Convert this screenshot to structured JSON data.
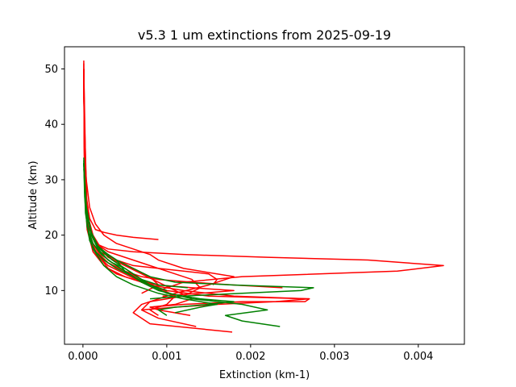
{
  "chart_data": {
    "type": "line",
    "title": "v5.3 1 um extinctions from 2025-09-19",
    "xlabel": "Extinction (km-1)",
    "ylabel": "Altitude (km)",
    "xlim": [
      -0.00022,
      0.00455
    ],
    "ylim": [
      0.3,
      54
    ],
    "xticks": [
      0.0,
      0.001,
      0.002,
      0.003,
      0.004
    ],
    "xtick_labels": [
      "0.000",
      "0.001",
      "0.002",
      "0.003",
      "0.004"
    ],
    "yticks": [
      10,
      20,
      30,
      40,
      50
    ],
    "ytick_labels": [
      "10",
      "20",
      "30",
      "40",
      "50"
    ],
    "grid": false,
    "legend": false,
    "colors": {
      "red": "#ff0000",
      "green": "#008000"
    },
    "series": [
      {
        "color": "red",
        "x": [
          0.00178,
          0.0008,
          0.0006,
          0.0007,
          0.0011,
          0.0015,
          0.0018,
          0.0012,
          0.0009,
          0.0008,
          0.0006,
          0.0004,
          0.00025,
          0.00015,
          8e-05,
          4e-05,
          2e-05,
          1e-05,
          1e-05
        ],
        "y": [
          2.5,
          4.0,
          6.0,
          7.5,
          9.5,
          11.0,
          12.5,
          14.0,
          15.5,
          16.5,
          17.5,
          18.5,
          20.0,
          22.0,
          25.0,
          30.0,
          35.0,
          45.0,
          51.5
        ]
      },
      {
        "color": "red",
        "x": [
          0.00135,
          0.0009,
          0.0007,
          0.0008,
          0.0012,
          0.0014,
          0.0013,
          0.001,
          0.0007,
          0.0005,
          0.0003,
          0.0002,
          0.00012,
          5e-05,
          2e-05,
          1e-05
        ],
        "y": [
          3.5,
          5.0,
          6.5,
          8.0,
          9.0,
          10.5,
          12.0,
          13.5,
          15.0,
          16.0,
          17.0,
          18.0,
          20.0,
          24.0,
          32.0,
          51.0
        ]
      },
      {
        "color": "red",
        "x": [
          0.0009,
          0.0008,
          0.001,
          0.0011,
          0.0009,
          0.0007,
          0.0005,
          0.0003,
          0.0002,
          0.00012,
          6e-05,
          2e-05,
          1e-05
        ],
        "y": [
          5.5,
          6.5,
          7.5,
          9.0,
          10.5,
          12.0,
          13.5,
          15.0,
          16.5,
          18.5,
          21.0,
          28.0,
          50.0
        ]
      },
      {
        "color": "red",
        "x": [
          0.00128,
          0.0009,
          0.0008,
          0.0012,
          0.0019,
          0.00265,
          0.0027,
          0.0015,
          0.001,
          0.0007,
          0.0005,
          0.0003,
          0.0002,
          0.0001,
          5e-05,
          2e-05,
          1e-05
        ],
        "y": [
          5.5,
          6.5,
          7.0,
          7.5,
          8.0,
          8.0,
          8.5,
          9.0,
          10.0,
          11.5,
          13.0,
          14.5,
          16.0,
          18.5,
          22.0,
          30.0,
          50.0
        ]
      },
      {
        "color": "red",
        "x": [
          0.0007,
          0.0011,
          0.0016,
          0.0023,
          0.0027,
          0.0018,
          0.0012,
          0.0008,
          0.0005,
          0.0003,
          0.00015,
          6e-05,
          2e-05,
          1e-05
        ],
        "y": [
          6.5,
          7.0,
          7.5,
          8.0,
          8.5,
          9.0,
          10.0,
          11.0,
          12.5,
          14.0,
          17.0,
          21.0,
          29.0,
          50.0
        ]
      },
      {
        "color": "red",
        "x": [
          0.00095,
          0.0014,
          0.0018,
          0.0013,
          0.0009,
          0.0006,
          0.0004,
          0.00025,
          0.00012,
          5e-05,
          2e-05,
          1e-05
        ],
        "y": [
          9.0,
          9.5,
          10.0,
          10.5,
          11.0,
          12.0,
          13.0,
          14.5,
          17.0,
          21.0,
          28.0,
          50.0
        ]
      },
      {
        "color": "red",
        "x": [
          0.00238,
          0.0018,
          0.0013,
          0.0009,
          0.0007,
          0.0005,
          0.0003,
          0.00015,
          6e-05,
          2e-05,
          1e-05
        ],
        "y": [
          10.5,
          11.0,
          11.5,
          12.0,
          12.5,
          13.5,
          15.0,
          17.0,
          21.0,
          29.0,
          50.0
        ]
      },
      {
        "color": "red",
        "x": [
          0.00155,
          0.0016,
          0.0015,
          0.0012,
          0.0009,
          0.0006,
          0.0004,
          0.0002,
          0.0001,
          4e-05,
          1e-05
        ],
        "y": [
          11.0,
          12.0,
          13.0,
          13.5,
          14.0,
          14.5,
          15.5,
          17.0,
          20.0,
          26.0,
          50.0
        ]
      },
      {
        "color": "red",
        "x": [
          0.0009,
          0.0012,
          0.0019,
          0.00375,
          0.0043,
          0.0034,
          0.0022,
          0.0012,
          0.0006,
          0.0003,
          0.00015,
          5e-05,
          2e-05,
          1e-05
        ],
        "y": [
          10.0,
          11.5,
          12.5,
          13.5,
          14.5,
          15.5,
          16.0,
          16.5,
          17.0,
          17.5,
          18.5,
          22.0,
          30.0,
          50.0
        ]
      },
      {
        "color": "red",
        "x": [
          0.0009,
          0.0006,
          0.0004,
          0.00025,
          0.00015,
          8e-05,
          3e-05,
          1e-05
        ],
        "y": [
          19.2,
          19.6,
          20.0,
          20.5,
          21.0,
          23.0,
          28.0,
          50.0
        ]
      },
      {
        "color": "red",
        "x": [
          0.0008,
          0.0011,
          0.0013,
          0.0011,
          0.0009,
          0.0007,
          0.0005,
          0.0003,
          0.00015,
          6e-05,
          2e-05,
          1e-05
        ],
        "y": [
          7.0,
          7.5,
          8.5,
          10.0,
          11.5,
          13.0,
          14.5,
          16.0,
          18.5,
          22.0,
          30.0,
          50.0
        ]
      },
      {
        "color": "red",
        "x": [
          0.0007,
          0.0009,
          0.0008,
          0.0006,
          0.0004,
          0.00025,
          0.00012,
          5e-05,
          1e-05
        ],
        "y": [
          9.5,
          11.0,
          12.5,
          14.0,
          15.5,
          17.0,
          19.5,
          24.0,
          45.0
        ]
      },
      {
        "color": "green",
        "x": [
          0.00235,
          0.0019,
          0.0017,
          0.0022,
          0.0019,
          0.0013,
          0.0009,
          0.0007,
          0.0005,
          0.0003,
          0.00018,
          0.0001,
          4e-05,
          2e-05,
          1e-05
        ],
        "y": [
          3.5,
          4.5,
          5.5,
          6.5,
          7.5,
          8.5,
          10.0,
          11.5,
          13.5,
          15.5,
          17.5,
          20.0,
          24.0,
          30.0,
          34.0
        ]
      },
      {
        "color": "green",
        "x": [
          0.001,
          0.0009,
          0.0011,
          0.0015,
          0.0018,
          0.0014,
          0.001,
          0.0008,
          0.0006,
          0.0004,
          0.00025,
          0.00015,
          8e-05,
          3e-05,
          1e-05
        ],
        "y": [
          5.5,
          6.5,
          7.0,
          7.5,
          8.0,
          8.5,
          9.5,
          11.0,
          12.5,
          14.0,
          15.5,
          17.0,
          19.0,
          24.0,
          33.0
        ]
      },
      {
        "color": "green",
        "x": [
          0.0011,
          0.0014,
          0.0016,
          0.0012,
          0.0009,
          0.0006,
          0.0004,
          0.00025,
          0.00012,
          5e-05,
          1e-05
        ],
        "y": [
          6.0,
          7.0,
          7.5,
          8.5,
          9.5,
          11.0,
          12.5,
          14.5,
          17.5,
          22.0,
          32.0
        ]
      },
      {
        "color": "green",
        "x": [
          0.0008,
          0.0012,
          0.0019,
          0.0026,
          0.00275,
          0.0018,
          0.0011,
          0.0008,
          0.0006,
          0.0004,
          0.0002,
          0.0001,
          3e-05,
          1e-05
        ],
        "y": [
          8.5,
          9.0,
          9.5,
          10.0,
          10.5,
          11.0,
          11.5,
          12.5,
          14.0,
          15.5,
          17.5,
          20.0,
          26.0,
          33.0
        ]
      },
      {
        "color": "green",
        "x": [
          0.00125,
          0.0009,
          0.0007,
          0.0006,
          0.0005,
          0.00035,
          0.0002,
          0.0001,
          4e-05,
          1e-05
        ],
        "y": [
          10.5,
          11.0,
          12.0,
          13.0,
          14.0,
          15.5,
          17.5,
          20.0,
          25.0,
          33.0
        ]
      },
      {
        "color": "green",
        "x": [
          0.001,
          0.0008,
          0.0007,
          0.0006,
          0.0005,
          0.00035,
          0.00022,
          0.00012,
          5e-05,
          2e-05,
          1e-05
        ],
        "y": [
          10.0,
          11.0,
          12.0,
          13.0,
          14.0,
          15.0,
          16.5,
          18.5,
          21.5,
          27.0,
          33.5
        ]
      },
      {
        "color": "green",
        "x": [
          0.0007,
          0.0006,
          0.0005,
          0.00045,
          0.0004,
          0.0003,
          0.00018,
          0.0001,
          4e-05,
          1e-05
        ],
        "y": [
          11.5,
          12.5,
          13.5,
          14.5,
          15.5,
          16.5,
          18.0,
          20.5,
          25.0,
          33.0
        ]
      }
    ]
  }
}
